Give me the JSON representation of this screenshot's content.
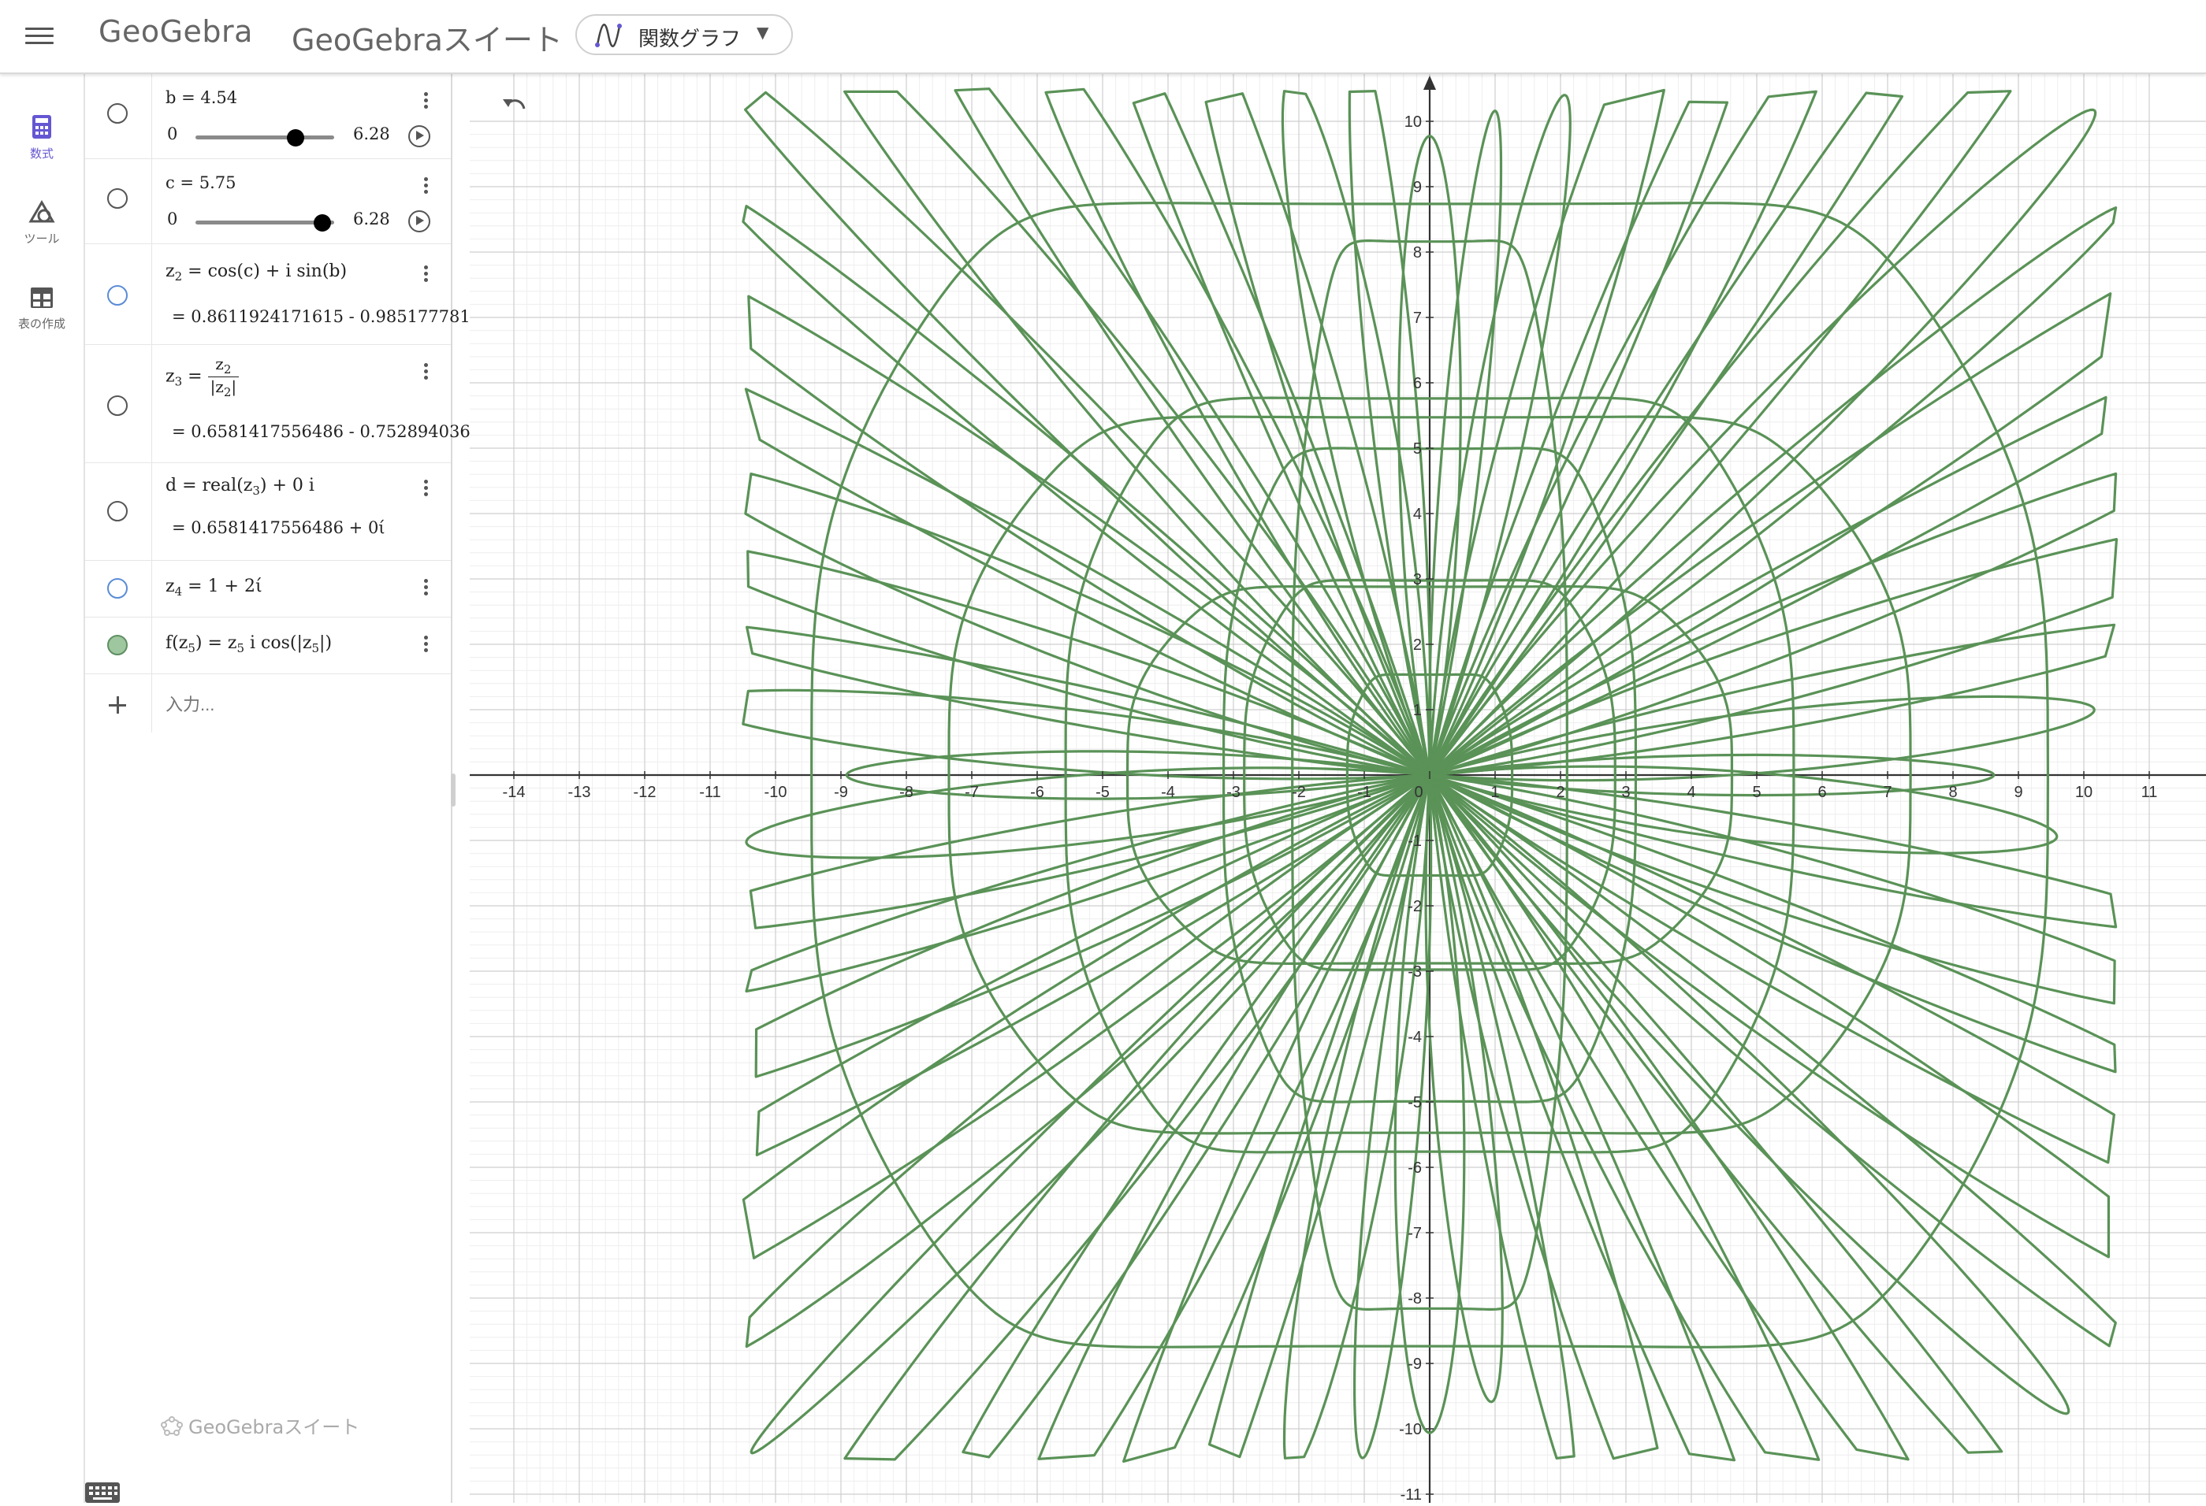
{
  "header": {
    "logo_text": "GeoGebra",
    "suite_title": "GeoGebraスイート",
    "app_switcher_label": "関数グラフ"
  },
  "nav": {
    "items": [
      {
        "label": "数式",
        "icon": "calculator-icon",
        "active": true
      },
      {
        "label": "ツール",
        "icon": "shapes-icon",
        "active": false
      },
      {
        "label": "表の作成",
        "icon": "table-icon",
        "active": false
      }
    ]
  },
  "algebra": {
    "b": {
      "label": "b = 4.54",
      "min": "0",
      "max": "6.28",
      "value": 4.54,
      "range": [
        0,
        6.28
      ]
    },
    "c": {
      "label": "c = 5.75",
      "min": "0",
      "max": "6.28",
      "value": 5.75,
      "range": [
        0,
        6.28
      ]
    },
    "z2": {
      "expr": "cos(c) + i  sin(b)",
      "value": "=  0.8611924171615 - 0.985177781"
    },
    "z3": {
      "value": "=  0.6581417556486 - 0.752894036"
    },
    "d": {
      "expr_prefix": "d  =  real(z",
      "expr_suffix": ") + 0 i",
      "value": "=  0.6581417556486 + 0ί"
    },
    "z4": {
      "expr": "=  1 + 2ί"
    },
    "f": {
      "expr_prefix": "f(z",
      "expr_mid": ")  =  z",
      "expr_mid2": " i  cos(|z",
      "expr_end": "|)"
    },
    "input_placeholder": "入力...",
    "footer": "GeoGebraスイート"
  },
  "graph": {
    "x_range": [
      -14,
      11
    ],
    "y_range": [
      -11,
      10
    ],
    "x_ticks": [
      -14,
      -13,
      -12,
      -11,
      -10,
      -9,
      -8,
      -7,
      -6,
      -5,
      -4,
      -3,
      -2,
      -1,
      0,
      1,
      2,
      3,
      4,
      5,
      6,
      7,
      8,
      9,
      10,
      11
    ],
    "y_ticks": [
      10,
      9,
      8,
      7,
      6,
      5,
      4,
      3,
      2,
      1,
      -1,
      -2,
      -3,
      -4,
      -5,
      -6,
      -7,
      -8,
      -9,
      -10,
      -11
    ],
    "curve_color": "#5a9257",
    "grid": true
  }
}
